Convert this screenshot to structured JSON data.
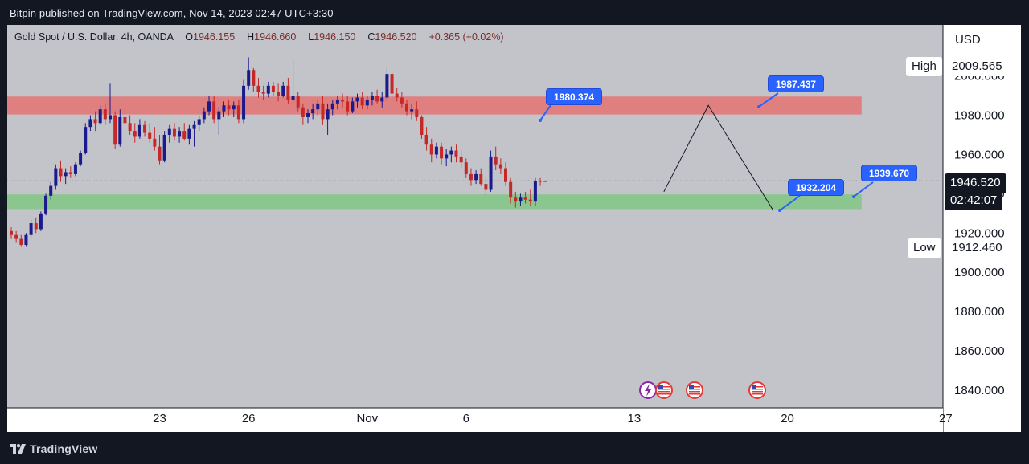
{
  "header": {
    "publish_info": "Bitpin published on TradingView.com, Nov 14, 2023 02:47 UTC+3:30"
  },
  "footer": {
    "brand": "TradingView"
  },
  "legend": {
    "symbol": "Gold Spot / U.S. Dollar, 4h, OANDA",
    "o_label": "O",
    "o_value": "1946.155",
    "h_label": "H",
    "h_value": "1946.660",
    "l_label": "L",
    "l_value": "1946.150",
    "c_label": "C",
    "c_value": "1946.520",
    "change": "+0.365 (+0.02%)"
  },
  "price_scale": {
    "currency": "USD",
    "high_label": "High",
    "high_value": "2009.565",
    "low_label": "Low",
    "low_value": "1912.460",
    "last_price": "1946.520",
    "countdown": "02:42:07"
  },
  "annotations": {
    "callout_1980": "1980.374",
    "callout_1987": "1987.437",
    "callout_1932": "1932.204",
    "callout_1939": "1939.670"
  },
  "colors": {
    "background": "#c2c4c9",
    "up_candle": "#1a1a8c",
    "down_candle": "#c62828",
    "resistance_zone": "#e57373",
    "support_zone": "#81c784",
    "callout": "#2962ff"
  },
  "chart_data": {
    "type": "candlestick",
    "title": "Gold Spot / U.S. Dollar, 4h, OANDA",
    "ylim": [
      1831,
      2026
    ],
    "y_ticks": [
      "1840.000",
      "1860.000",
      "1880.000",
      "1900.000",
      "1920.000",
      "1940.000",
      "1960.000",
      "1980.000",
      "2000.000"
    ],
    "y_tick_values": [
      1840,
      1860,
      1880,
      1900,
      1920,
      1940,
      1960,
      1980,
      2000
    ],
    "x_ticks": [
      {
        "label": "23",
        "bar": 30
      },
      {
        "label": "26",
        "bar": 48
      },
      {
        "label": "Nov",
        "bar": 72
      },
      {
        "label": "6",
        "bar": 92
      },
      {
        "label": "13",
        "bar": 126
      },
      {
        "label": "20",
        "bar": 157
      },
      {
        "label": "27",
        "bar": 189
      }
    ],
    "zones": [
      {
        "name": "resistance",
        "from": 1980.374,
        "to": 1989.5,
        "end_bar": 172
      },
      {
        "name": "support",
        "from": 1932.204,
        "to": 1939.67,
        "end_bar": 172
      }
    ],
    "projection": [
      {
        "bar": 132,
        "price": 1941
      },
      {
        "bar": 141,
        "price": 1985
      },
      {
        "bar": 154,
        "price": 1932
      }
    ],
    "last_price": 1946.52,
    "candles": [
      [
        1921,
        1923,
        1917,
        1919
      ],
      [
        1919,
        1921,
        1915,
        1917
      ],
      [
        1917,
        1919,
        1913,
        1914
      ],
      [
        1914,
        1920,
        1913,
        1919
      ],
      [
        1919,
        1927,
        1918,
        1925
      ],
      [
        1925,
        1928,
        1920,
        1922
      ],
      [
        1922,
        1931,
        1921,
        1930
      ],
      [
        1930,
        1940,
        1929,
        1939
      ],
      [
        1939,
        1946,
        1937,
        1944
      ],
      [
        1944,
        1955,
        1942,
        1953
      ],
      [
        1953,
        1957,
        1946,
        1949
      ],
      [
        1949,
        1953,
        1945,
        1951
      ],
      [
        1951,
        1954,
        1948,
        1950
      ],
      [
        1950,
        1956,
        1949,
        1955
      ],
      [
        1955,
        1962,
        1954,
        1961
      ],
      [
        1961,
        1976,
        1960,
        1974
      ],
      [
        1974,
        1980,
        1972,
        1978
      ],
      [
        1978,
        1982,
        1972,
        1976
      ],
      [
        1976,
        1985,
        1975,
        1983
      ],
      [
        1983,
        1986,
        1975,
        1978
      ],
      [
        1978,
        1996,
        1976,
        1980
      ],
      [
        1980,
        1982,
        1963,
        1965
      ],
      [
        1965,
        1983,
        1964,
        1979
      ],
      [
        1979,
        1984,
        1974,
        1976
      ],
      [
        1976,
        1980,
        1970,
        1972
      ],
      [
        1972,
        1976,
        1966,
        1969
      ],
      [
        1969,
        1978,
        1968,
        1975
      ],
      [
        1975,
        1977,
        1969,
        1971
      ],
      [
        1971,
        1976,
        1966,
        1968
      ],
      [
        1968,
        1974,
        1962,
        1964
      ],
      [
        1964,
        1970,
        1955,
        1957
      ],
      [
        1957,
        1972,
        1956,
        1970
      ],
      [
        1970,
        1975,
        1966,
        1973
      ],
      [
        1973,
        1976,
        1967,
        1969
      ],
      [
        1969,
        1974,
        1966,
        1972
      ],
      [
        1972,
        1976,
        1967,
        1968
      ],
      [
        1968,
        1975,
        1965,
        1973
      ],
      [
        1973,
        1977,
        1964,
        1975
      ],
      [
        1975,
        1980,
        1972,
        1978
      ],
      [
        1978,
        1984,
        1976,
        1982
      ],
      [
        1982,
        1990,
        1980,
        1987
      ],
      [
        1987,
        1990,
        1976,
        1978
      ],
      [
        1978,
        1984,
        1970,
        1982
      ],
      [
        1982,
        1987,
        1979,
        1985
      ],
      [
        1985,
        1988,
        1980,
        1983
      ],
      [
        1983,
        1987,
        1979,
        1985
      ],
      [
        1985,
        1988,
        1976,
        1978
      ],
      [
        1978,
        1998,
        1976,
        1995
      ],
      [
        1995,
        2009.5,
        1993,
        2003
      ],
      [
        2003,
        2004,
        1992,
        1995
      ],
      [
        1995,
        1999,
        1989,
        1992
      ],
      [
        1992,
        1995,
        1988,
        1991
      ],
      [
        1991,
        1997,
        1989,
        1995
      ],
      [
        1995,
        1997,
        1990,
        1992
      ],
      [
        1992,
        1996,
        1987,
        1990
      ],
      [
        1990,
        1997,
        1989,
        1995
      ],
      [
        1995,
        1999,
        1986,
        1988
      ],
      [
        1988,
        2008,
        1986,
        1990
      ],
      [
        1990,
        1992,
        1982,
        1984
      ],
      [
        1984,
        1986,
        1975,
        1979
      ],
      [
        1979,
        1983,
        1976,
        1981
      ],
      [
        1981,
        1986,
        1978,
        1983
      ],
      [
        1983,
        1988,
        1980,
        1986
      ],
      [
        1986,
        1990,
        1975,
        1978
      ],
      [
        1978,
        1986,
        1970,
        1983
      ],
      [
        1983,
        1988,
        1980,
        1986
      ],
      [
        1986,
        1990,
        1983,
        1988
      ],
      [
        1988,
        1991,
        1984,
        1987
      ],
      [
        1987,
        1990,
        1980,
        1982
      ],
      [
        1982,
        1989,
        1981,
        1987
      ],
      [
        1987,
        1991,
        1984,
        1989
      ],
      [
        1989,
        1992,
        1983,
        1985
      ],
      [
        1985,
        1990,
        1983,
        1988
      ],
      [
        1988,
        1992,
        1985,
        1990
      ],
      [
        1990,
        1993,
        1986,
        1987
      ],
      [
        1987,
        1992,
        1984,
        1989
      ],
      [
        1989,
        2004,
        1987,
        2001
      ],
      [
        2001,
        2003,
        1988,
        1991
      ],
      [
        1991,
        1994,
        1987,
        1989
      ],
      [
        1989,
        1992,
        1984,
        1986
      ],
      [
        1986,
        1988,
        1980,
        1982
      ],
      [
        1982,
        1986,
        1978,
        1983
      ],
      [
        1983,
        1987,
        1977,
        1979
      ],
      [
        1979,
        1980,
        1968,
        1970
      ],
      [
        1970,
        1974,
        1962,
        1965
      ],
      [
        1965,
        1968,
        1956,
        1960
      ],
      [
        1960,
        1966,
        1958,
        1964
      ],
      [
        1964,
        1966,
        1955,
        1958
      ],
      [
        1958,
        1963,
        1954,
        1960
      ],
      [
        1960,
        1964,
        1956,
        1962
      ],
      [
        1962,
        1965,
        1956,
        1959
      ],
      [
        1959,
        1962,
        1953,
        1956
      ],
      [
        1956,
        1958,
        1948,
        1950
      ],
      [
        1950,
        1953,
        1944,
        1947
      ],
      [
        1947,
        1952,
        1945,
        1950
      ],
      [
        1950,
        1953,
        1944,
        1945
      ],
      [
        1945,
        1948,
        1939,
        1942
      ],
      [
        1942,
        1962,
        1941,
        1959
      ],
      [
        1959,
        1964,
        1952,
        1955
      ],
      [
        1955,
        1958,
        1950,
        1953
      ],
      [
        1953,
        1956,
        1944,
        1946
      ],
      [
        1946,
        1948,
        1935,
        1938
      ],
      [
        1938,
        1941,
        1933,
        1936
      ],
      [
        1936,
        1940,
        1934,
        1938
      ],
      [
        1938,
        1941,
        1935,
        1937
      ],
      [
        1937,
        1942,
        1934,
        1936
      ],
      [
        1936,
        1948,
        1934,
        1946.5
      ],
      [
        1946.5,
        1948,
        1944,
        1946.2
      ],
      [
        1946.155,
        1946.66,
        1946.15,
        1946.52
      ]
    ]
  }
}
